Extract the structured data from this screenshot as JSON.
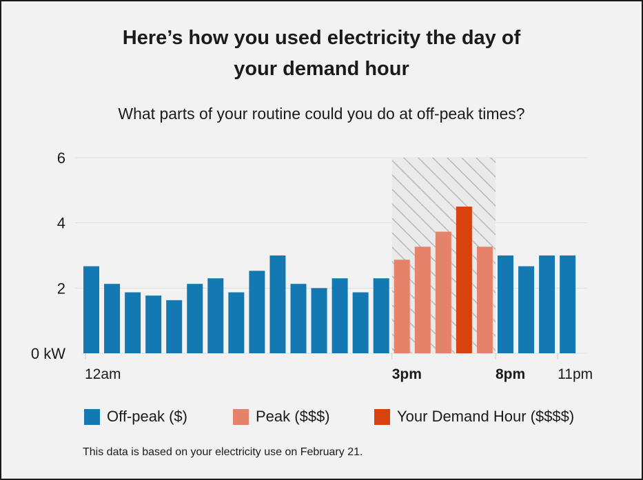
{
  "title_line1": "Here’s how you used electricity the day of",
  "title_line2": "your demand hour",
  "subtitle": "What parts of your routine could you do at off-peak times?",
  "footnote": "This data is based on your electricity use on February 21.",
  "colors": {
    "offpeak": "#1479b2",
    "peak": "#e5826a",
    "demand": "#d8420f",
    "grid": "#dddddd",
    "hatch": "#bbbbbb"
  },
  "legend": [
    {
      "label": "Off-peak ($)",
      "series": "offpeak"
    },
    {
      "label": "Peak ($$$)",
      "series": "peak"
    },
    {
      "label": "Your Demand Hour ($$$$)",
      "series": "demand"
    }
  ],
  "chart_data": {
    "type": "bar",
    "ylim": [
      0,
      6
    ],
    "y_ticks": [
      {
        "value": 0,
        "label": "0 kW"
      },
      {
        "value": 2,
        "label": "2"
      },
      {
        "value": 4,
        "label": "4"
      },
      {
        "value": 6,
        "label": "6"
      }
    ],
    "x_ticks": [
      {
        "hour": 0,
        "label": "12am",
        "bold": false
      },
      {
        "hour": 15,
        "label": "3pm",
        "bold": true
      },
      {
        "hour": 20,
        "label": "8pm",
        "bold": true
      },
      {
        "hour": 23,
        "label": "11pm",
        "bold": false
      }
    ],
    "peak_window_hours": [
      15,
      20
    ],
    "hours": [
      0,
      1,
      2,
      3,
      4,
      5,
      6,
      7,
      8,
      9,
      10,
      11,
      12,
      13,
      14,
      15,
      16,
      17,
      18,
      19,
      20,
      21,
      22,
      23
    ],
    "values": [
      2.67,
      2.13,
      1.87,
      1.77,
      1.63,
      2.13,
      2.3,
      1.87,
      2.53,
      3.0,
      2.13,
      2.0,
      2.3,
      1.87,
      2.3,
      2.87,
      3.27,
      3.73,
      4.5,
      3.27,
      3.0,
      2.67,
      3.0,
      3.0
    ],
    "categories": [
      "offpeak",
      "offpeak",
      "offpeak",
      "offpeak",
      "offpeak",
      "offpeak",
      "offpeak",
      "offpeak",
      "offpeak",
      "offpeak",
      "offpeak",
      "offpeak",
      "offpeak",
      "offpeak",
      "offpeak",
      "peak",
      "peak",
      "peak",
      "demand",
      "peak",
      "offpeak",
      "offpeak",
      "offpeak",
      "offpeak"
    ]
  }
}
